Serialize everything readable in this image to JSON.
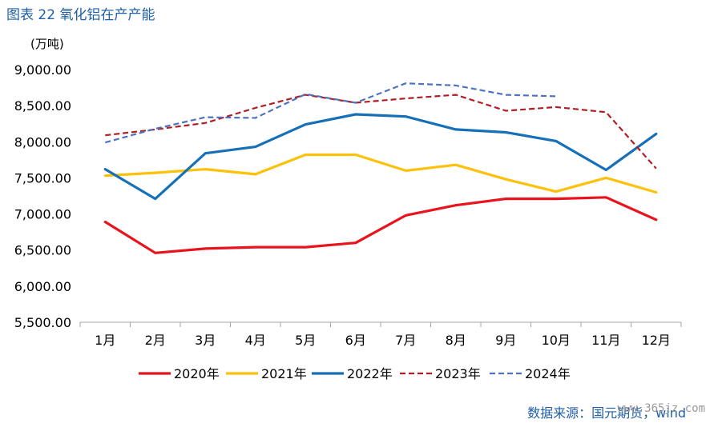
{
  "figure_title": "图表 22 氧化铝在产产能",
  "source": "数据来源：国元期货，wind",
  "watermark": "www.365jz.com",
  "chart_data": {
    "type": "line",
    "title": "",
    "xlabel": "",
    "ylabel": "(万吨)",
    "categories": [
      "1月",
      "2月",
      "3月",
      "4月",
      "5月",
      "6月",
      "7月",
      "8月",
      "9月",
      "10月",
      "11月",
      "12月"
    ],
    "ylim": [
      5500,
      9000
    ],
    "yticks": [
      5500,
      6000,
      6500,
      7000,
      7500,
      8000,
      8500,
      9000
    ],
    "ytick_labels": [
      "5,500.00",
      "6,000.00",
      "6,500.00",
      "7,000.00",
      "7,500.00",
      "8,000.00",
      "8,500.00",
      "9,000.00"
    ],
    "grid": false,
    "legend_position": "bottom",
    "series": [
      {
        "name": "2020年",
        "color": "#e8131b",
        "style": "solid",
        "values": [
          6890,
          6460,
          6520,
          6540,
          6540,
          6600,
          6980,
          7120,
          7210,
          7210,
          7230,
          6920
        ]
      },
      {
        "name": "2021年",
        "color": "#fdc10a",
        "style": "solid",
        "values": [
          7530,
          7570,
          7620,
          7550,
          7820,
          7820,
          7600,
          7680,
          7480,
          7310,
          7500,
          7300
        ]
      },
      {
        "name": "2022年",
        "color": "#1670b8",
        "style": "solid",
        "values": [
          7620,
          7210,
          7840,
          7930,
          8240,
          8380,
          8350,
          8170,
          8130,
          8010,
          7610,
          8110
        ]
      },
      {
        "name": "2023年",
        "color": "#b01e24",
        "style": "dashed",
        "values": [
          8090,
          8170,
          8260,
          8470,
          8650,
          8540,
          8600,
          8650,
          8430,
          8480,
          8410,
          7630
        ]
      },
      {
        "name": "2024年",
        "color": "#4d73c0",
        "style": "dashed",
        "values": [
          7990,
          8180,
          8340,
          8330,
          8660,
          8540,
          8810,
          8780,
          8650,
          8630,
          null,
          null
        ]
      }
    ]
  }
}
